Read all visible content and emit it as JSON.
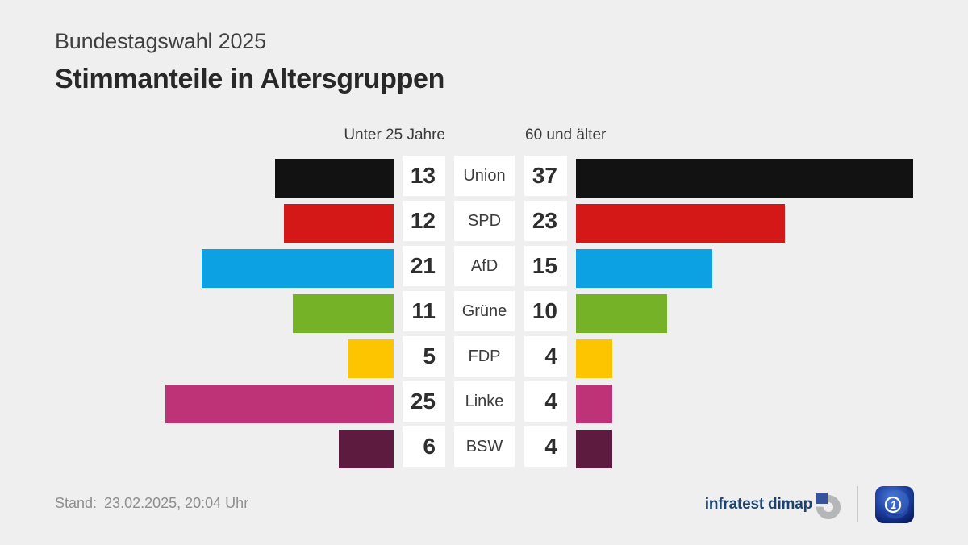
{
  "header": {
    "subtitle": "Bundestagswahl 2025",
    "title": "Stimmanteile in Altersgruppen"
  },
  "column_headers": {
    "left": "Unter 25 Jahre",
    "right": "60 und älter"
  },
  "chart_data": {
    "type": "bar",
    "orientation": "horizontal-mirrored",
    "title": "Stimmanteile in Altersgruppen",
    "subtitle": "Bundestagswahl 2025",
    "unit": "Prozent",
    "categories": [
      "Union",
      "SPD",
      "AfD",
      "Grüne",
      "FDP",
      "Linke",
      "BSW"
    ],
    "series": [
      {
        "name": "Unter 25 Jahre",
        "side": "left",
        "values": [
          13,
          12,
          21,
          11,
          5,
          25,
          6
        ]
      },
      {
        "name": "60 und älter",
        "side": "right",
        "values": [
          37,
          23,
          15,
          10,
          4,
          4,
          4
        ]
      }
    ],
    "colors": [
      "#121212",
      "#d41717",
      "#0ba1e2",
      "#75b227",
      "#fdc500",
      "#be3377",
      "#5e1b40"
    ],
    "value_labels_shown": true,
    "axis_shown": false,
    "xlim_each_side": [
      0,
      40
    ],
    "background_color": "#efefef",
    "box_color": "#ffffff"
  },
  "footer": {
    "stand_label": "Stand:",
    "timestamp": "23.02.2025, 20:04 Uhr",
    "source": "infratest dimap",
    "icons": {
      "source_logo": "infratest-dimap-ring-logo",
      "broadcaster_logo": "ard-tagesschau-globe-logo"
    },
    "brand_color": "#1d4270"
  }
}
